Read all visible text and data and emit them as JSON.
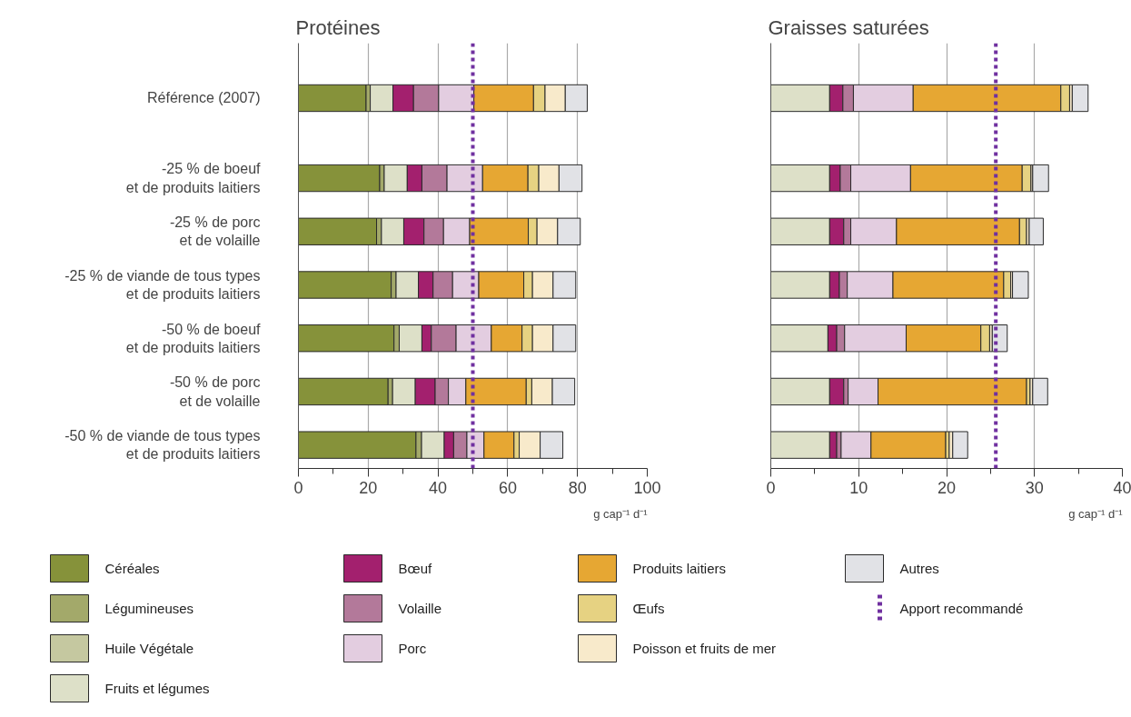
{
  "chart_data": [
    {
      "type": "bar",
      "orientation": "horizontal",
      "stacked": true,
      "title": "Protéines",
      "xlabel": "g cap⁻¹ d⁻¹",
      "legend": "bottom",
      "grid": "x",
      "xlim": [
        0,
        100
      ],
      "xticks": [
        0,
        20,
        40,
        60,
        80,
        100
      ],
      "categories": [
        "Référence (2007)",
        "-25 % de boeuf\net de produits laitiers",
        "-25 % de porc\net de volaille",
        "-25 % de viande de tous types\net de produits laitiers",
        "-50 % de boeuf\net de produits laitiers",
        "-50 % de porc\net de volaille",
        "-50 % de viande de tous types\net de produits laitiers"
      ],
      "series": [
        {
          "name": "Céréales",
          "color": "#86923a",
          "values": [
            19.4,
            23.3,
            22.4,
            26.6,
            27.4,
            25.7,
            33.7
          ]
        },
        {
          "name": "Légumineuses",
          "color": "#a3a96a",
          "values": [
            1.2,
            1.3,
            1.4,
            1.4,
            1.5,
            1.3,
            1.6
          ]
        },
        {
          "name": "Huile Végétale",
          "color": "#c5c8a0",
          "values": [
            null,
            null,
            null,
            null,
            null,
            null,
            null
          ]
        },
        {
          "name": "Fruits et légumes",
          "color": "#dde0c8",
          "values": [
            6.5,
            6.6,
            6.4,
            6.4,
            6.5,
            6.5,
            6.5
          ]
        },
        {
          "name": "Bœuf",
          "color": "#a3206e",
          "values": [
            5.9,
            4.2,
            5.8,
            4.2,
            2.7,
            5.7,
            2.7
          ]
        },
        {
          "name": "Volaille",
          "color": "#b3799a",
          "values": [
            7.2,
            7.2,
            5.6,
            5.6,
            7.1,
            3.8,
            3.8
          ]
        },
        {
          "name": "Porc",
          "color": "#e3cde0",
          "values": [
            10.1,
            10.2,
            7.5,
            7.5,
            10.1,
            5.0,
            4.9
          ]
        },
        {
          "name": "Produits laitiers",
          "color": "#e6a733",
          "values": [
            17.1,
            13.0,
            16.8,
            12.9,
            8.8,
            17.3,
            8.6
          ]
        },
        {
          "name": "Œufs",
          "color": "#e6d282",
          "values": [
            3.3,
            3.1,
            2.5,
            2.5,
            3.0,
            1.6,
            1.5
          ]
        },
        {
          "name": "Poisson et fruits de mer",
          "color": "#f8eacb",
          "values": [
            5.8,
            5.8,
            5.9,
            5.9,
            5.9,
            5.9,
            6.0
          ]
        },
        {
          "name": "Autres",
          "color": "#e1e2e6",
          "values": [
            6.3,
            6.6,
            6.5,
            6.5,
            6.5,
            6.4,
            6.5
          ]
        }
      ],
      "ref_lines": [
        {
          "axis": "x",
          "value": 50,
          "label": "Apport recommandé",
          "color": "#7030a0",
          "line_style": "dotted"
        }
      ]
    },
    {
      "type": "bar",
      "orientation": "horizontal",
      "stacked": true,
      "title": "Graisses saturées",
      "xlabel": "g cap⁻¹ d⁻¹",
      "grid": "x",
      "xlim": [
        0,
        40
      ],
      "xticks": [
        0,
        10,
        20,
        30,
        40
      ],
      "categories": [
        null,
        null,
        null,
        null,
        null,
        null,
        null
      ],
      "series": [
        {
          "color": "#dde0c8",
          "values": [
            6.7,
            6.7,
            6.7,
            6.7,
            6.5,
            6.7,
            6.7
          ]
        },
        {
          "color": "#a3206e",
          "values": [
            1.5,
            1.2,
            1.6,
            1.1,
            1.0,
            1.6,
            0.8
          ]
        },
        {
          "color": "#b3799a",
          "values": [
            1.2,
            1.2,
            0.8,
            0.9,
            0.9,
            0.5,
            0.5
          ]
        },
        {
          "color": "#e3cde0",
          "values": [
            6.8,
            6.8,
            5.2,
            5.2,
            7.0,
            3.4,
            3.4
          ]
        },
        {
          "color": "#e6a733",
          "values": [
            16.8,
            12.7,
            14.0,
            12.6,
            8.5,
            16.9,
            8.5
          ]
        },
        {
          "color": "#e6d282",
          "values": [
            1.0,
            1.0,
            0.8,
            0.8,
            1.0,
            0.4,
            0.4
          ]
        },
        {
          "color": "#f8eacb",
          "values": [
            0.3,
            0.2,
            0.3,
            0.2,
            0.3,
            0.3,
            0.4
          ]
        },
        {
          "color": "#e1e2e6",
          "values": [
            1.8,
            1.8,
            1.6,
            1.8,
            1.7,
            1.7,
            1.7
          ]
        }
      ],
      "ref_lines": [
        {
          "axis": "x",
          "value": 25.6,
          "color": "#7030a0",
          "line_style": "dotted"
        }
      ]
    }
  ]
}
